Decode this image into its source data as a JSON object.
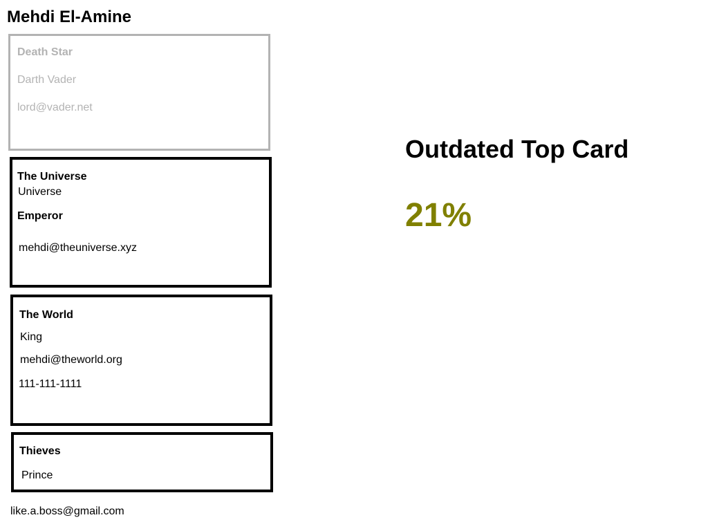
{
  "user": {
    "name": "Mehdi El-Amine",
    "footer_email": "like.a.boss@gmail.com"
  },
  "cards": [
    {
      "status": "outdated",
      "company": "Death Star",
      "title": "Darth Vader",
      "email": "lord@vader.net"
    },
    {
      "status": "current",
      "company": "The Universe",
      "subtitle": "Universe",
      "title": "Emperor",
      "email": "mehdi@theuniverse.xyz"
    },
    {
      "status": "current",
      "company": "The World",
      "title": "King",
      "email": "mehdi@theworld.org",
      "phone": "111-111-1111"
    },
    {
      "status": "current",
      "company": "Thieves",
      "title": "Prince"
    }
  ],
  "stat": {
    "label": "Outdated Top Card",
    "value": "21%",
    "value_color": "#808000"
  },
  "colors": {
    "outdated_gray": "#b3b3b3",
    "border_black": "#000000"
  }
}
